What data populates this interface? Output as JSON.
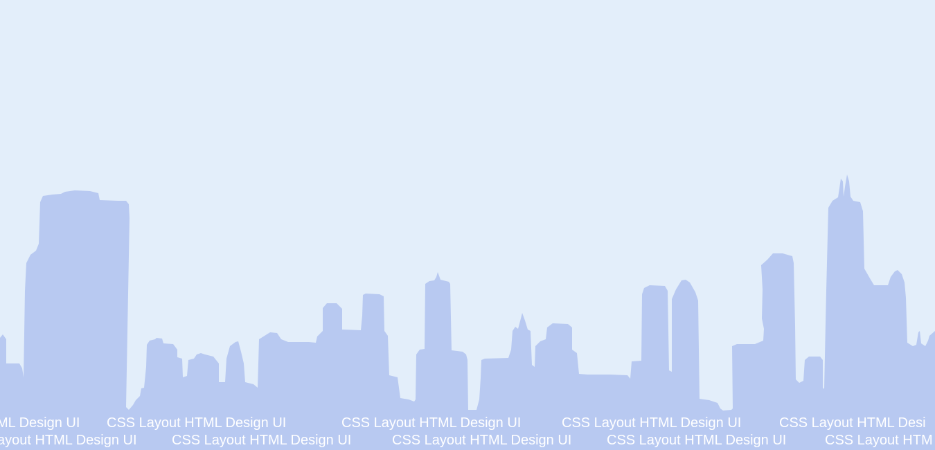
{
  "scene": {
    "background_color": "#e3eefa",
    "skyline_color": "#b8c9f1",
    "text_color": "#ffffff"
  },
  "ticker": {
    "row1": [
      "ML Design UI",
      "CSS Layout HTML Design UI",
      "CSS Layout HTML Design UI",
      "CSS Layout HTML Design UI",
      "CSS Layout HTML Desi"
    ],
    "row2": [
      "ayout HTML Design UI",
      "CSS Layout HTML Design UI",
      "CSS Layout HTML Design UI",
      "CSS Layout HTML Design UI",
      "CSS Layout HTM"
    ]
  }
}
